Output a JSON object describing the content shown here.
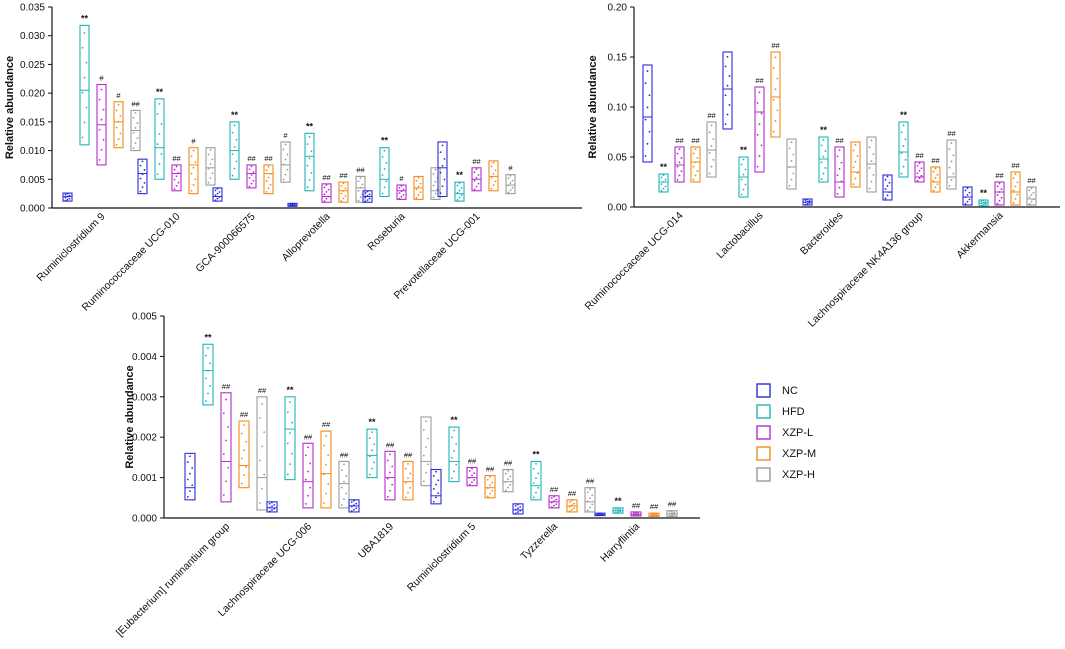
{
  "legend": [
    {
      "name": "NC",
      "color": "#2b2bd9"
    },
    {
      "name": "HFD",
      "color": "#21b3b8"
    },
    {
      "name": "XZP-L",
      "color": "#b52cc9"
    },
    {
      "name": "XZP-M",
      "color": "#f28a1b"
    },
    {
      "name": "XZP-H",
      "color": "#9a9a9a"
    }
  ],
  "chart_data": [
    {
      "type": "box",
      "ylabel": "Relative abundance",
      "ylim": [
        0,
        0.035
      ],
      "yticks": [
        "0.000",
        "0.005",
        "0.010",
        "0.015",
        "0.020",
        "0.025",
        "0.030",
        "0.035"
      ],
      "ytick_values": [
        0,
        0.005,
        0.01,
        0.015,
        0.02,
        0.025,
        0.03,
        0.035
      ],
      "categories": [
        "Ruminiclostridium 9",
        "Ruminococcaceae UCG-010",
        "GCA-900066575",
        "Alloprevotella",
        "Roseburia",
        "Prevotellaceae UCG-001"
      ],
      "series": [
        {
          "name": "NC",
          "boxes": [
            [
              0.0012,
              0.002,
              0.0026
            ],
            [
              0.0025,
              0.006,
              0.0085
            ],
            [
              0.0012,
              0.002,
              0.0035
            ],
            [
              0.0003,
              0.0005,
              0.0008
            ],
            [
              0.001,
              0.002,
              0.003
            ],
            [
              0.002,
              0.007,
              0.0115
            ]
          ],
          "sig": [
            "",
            "",
            "",
            "",
            "",
            ""
          ]
        },
        {
          "name": "HFD",
          "boxes": [
            [
              0.011,
              0.0205,
              0.0318
            ],
            [
              0.005,
              0.0105,
              0.019
            ],
            [
              0.005,
              0.01,
              0.015
            ],
            [
              0.003,
              0.009,
              0.013
            ],
            [
              0.002,
              0.005,
              0.0105
            ],
            [
              0.0012,
              0.0025,
              0.0045
            ]
          ],
          "sig": [
            "**",
            "**",
            "**",
            "**",
            "**",
            "**"
          ]
        },
        {
          "name": "XZP-L",
          "boxes": [
            [
              0.0075,
              0.0145,
              0.0215
            ],
            [
              0.003,
              0.006,
              0.0075
            ],
            [
              0.0035,
              0.006,
              0.0075
            ],
            [
              0.001,
              0.002,
              0.0042
            ],
            [
              0.0015,
              0.003,
              0.004
            ],
            [
              0.003,
              0.005,
              0.007
            ]
          ],
          "sig": [
            "#",
            "##",
            "##",
            "##",
            "#",
            "##"
          ]
        },
        {
          "name": "XZP-M",
          "boxes": [
            [
              0.0105,
              0.015,
              0.0185
            ],
            [
              0.0025,
              0.0075,
              0.0105
            ],
            [
              0.0025,
              0.006,
              0.0075
            ],
            [
              0.001,
              0.003,
              0.0045
            ],
            [
              0.0015,
              0.0035,
              0.0055
            ],
            [
              0.003,
              0.0055,
              0.0082
            ]
          ],
          "sig": [
            "#",
            "#",
            "##",
            "##",
            "",
            ""
          ]
        },
        {
          "name": "XZP-H",
          "boxes": [
            [
              0.01,
              0.0135,
              0.017
            ],
            [
              0.004,
              0.007,
              0.0105
            ],
            [
              0.0045,
              0.0075,
              0.0115
            ],
            [
              0.001,
              0.0035,
              0.0055
            ],
            [
              0.0015,
              0.003,
              0.007
            ],
            [
              0.0025,
              0.004,
              0.0058
            ]
          ],
          "sig": [
            "##",
            "",
            "#",
            "##",
            "",
            "#"
          ]
        }
      ]
    },
    {
      "type": "box",
      "ylabel": "Relative abundance",
      "ylim": [
        0,
        0.2
      ],
      "yticks": [
        "0.00",
        "0.05",
        "0.10",
        "0.15",
        "0.20"
      ],
      "ytick_values": [
        0,
        0.05,
        0.1,
        0.15,
        0.2
      ],
      "categories": [
        "Ruminococcaceae UCG-014",
        "Lactobacillus",
        "Bacteroides",
        "Lachnospiraceae NK4A136 group",
        "Akkermansia"
      ],
      "series": [
        {
          "name": "NC",
          "boxes": [
            [
              0.045,
              0.09,
              0.142
            ],
            [
              0.078,
              0.118,
              0.155
            ],
            [
              0.002,
              0.005,
              0.008
            ],
            [
              0.007,
              0.015,
              0.032
            ],
            [
              0.002,
              0.01,
              0.02
            ]
          ],
          "sig": [
            "",
            "",
            "",
            "",
            ""
          ]
        },
        {
          "name": "HFD",
          "boxes": [
            [
              0.015,
              0.025,
              0.033
            ],
            [
              0.01,
              0.03,
              0.05
            ],
            [
              0.025,
              0.048,
              0.07
            ],
            [
              0.03,
              0.055,
              0.085
            ],
            [
              0.001,
              0.004,
              0.007
            ]
          ],
          "sig": [
            "**",
            "**",
            "**",
            "**",
            "**"
          ]
        },
        {
          "name": "XZP-L",
          "boxes": [
            [
              0.025,
              0.042,
              0.06
            ],
            [
              0.035,
              0.095,
              0.12
            ],
            [
              0.01,
              0.025,
              0.06
            ],
            [
              0.025,
              0.03,
              0.045
            ],
            [
              0.002,
              0.015,
              0.025
            ]
          ],
          "sig": [
            "##",
            "##",
            "##",
            "##",
            "##"
          ]
        },
        {
          "name": "XZP-M",
          "boxes": [
            [
              0.025,
              0.045,
              0.06
            ],
            [
              0.07,
              0.11,
              0.155
            ],
            [
              0.02,
              0.035,
              0.065
            ],
            [
              0.015,
              0.025,
              0.04
            ],
            [
              0.002,
              0.015,
              0.035
            ]
          ],
          "sig": [
            "##",
            "##",
            "",
            "##",
            "##"
          ]
        },
        {
          "name": "XZP-H",
          "boxes": [
            [
              0.03,
              0.057,
              0.085
            ],
            [
              0.018,
              0.04,
              0.068
            ],
            [
              0.015,
              0.043,
              0.07
            ],
            [
              0.018,
              0.03,
              0.067
            ],
            [
              0.002,
              0.008,
              0.02
            ]
          ],
          "sig": [
            "##",
            "",
            "",
            "##",
            "##"
          ]
        }
      ]
    },
    {
      "type": "box",
      "ylabel": "Relative abundance",
      "ylim": [
        0,
        0.005
      ],
      "yticks": [
        "0.000",
        "0.001",
        "0.002",
        "0.003",
        "0.004",
        "0.005"
      ],
      "ytick_values": [
        0,
        0.001,
        0.002,
        0.003,
        0.004,
        0.005
      ],
      "categories": [
        "[Eubacterium] ruminantium group",
        "Lachnospiraceae UCG-006",
        "UBA1819",
        "Ruminiclostridium 5",
        "Tyzzerella",
        "Harryflintia"
      ],
      "series": [
        {
          "name": "NC",
          "boxes": [
            [
              0.00045,
              0.00075,
              0.0016
            ],
            [
              0.00015,
              0.00025,
              0.0004
            ],
            [
              0.00015,
              0.0003,
              0.00045
            ],
            [
              0.00035,
              0.00055,
              0.0012
            ],
            [
              0.0001,
              0.0002,
              0.00035
            ],
            [
              6e-05,
              8e-05,
              0.00012
            ]
          ],
          "sig": [
            "",
            "",
            "",
            "",
            "",
            ""
          ]
        },
        {
          "name": "HFD",
          "boxes": [
            [
              0.0028,
              0.00365,
              0.0043
            ],
            [
              0.00095,
              0.0022,
              0.003
            ],
            [
              0.001,
              0.00155,
              0.0022
            ],
            [
              0.0009,
              0.0014,
              0.00225
            ],
            [
              0.00045,
              0.0008,
              0.0014
            ],
            [
              0.00012,
              0.00018,
              0.00025
            ]
          ],
          "sig": [
            "**",
            "**",
            "**",
            "**",
            "**",
            "**"
          ]
        },
        {
          "name": "XZP-L",
          "boxes": [
            [
              0.0004,
              0.0014,
              0.0031
            ],
            [
              0.00025,
              0.0009,
              0.00185
            ],
            [
              0.00045,
              0.001,
              0.00165
            ],
            [
              0.0008,
              0.001,
              0.00125
            ],
            [
              0.00025,
              0.0004,
              0.00055
            ],
            [
              5e-05,
              9e-05,
              0.00015
            ]
          ],
          "sig": [
            "##",
            "##",
            "##",
            "##",
            "##",
            "##"
          ]
        },
        {
          "name": "XZP-M",
          "boxes": [
            [
              0.00075,
              0.0013,
              0.0024
            ],
            [
              0.00025,
              0.0011,
              0.00215
            ],
            [
              0.00045,
              0.0009,
              0.0014
            ],
            [
              0.0005,
              0.00075,
              0.00105
            ],
            [
              0.00015,
              0.0003,
              0.00045
            ],
            [
              4e-05,
              7e-05,
              0.00012
            ]
          ],
          "sig": [
            "##",
            "##",
            "##",
            "##",
            "##",
            "##"
          ]
        },
        {
          "name": "XZP-H",
          "boxes": [
            [
              0.0002,
              0.001,
              0.003
            ],
            [
              0.00025,
              0.00085,
              0.0014
            ],
            [
              0.0008,
              0.0014,
              0.0025
            ],
            [
              0.00065,
              0.0009,
              0.0012
            ],
            [
              0.00015,
              0.0004,
              0.00075
            ],
            [
              4e-05,
              0.0001,
              0.00018
            ]
          ],
          "sig": [
            "##",
            "##",
            "",
            "##",
            "##",
            "##"
          ]
        }
      ]
    }
  ]
}
